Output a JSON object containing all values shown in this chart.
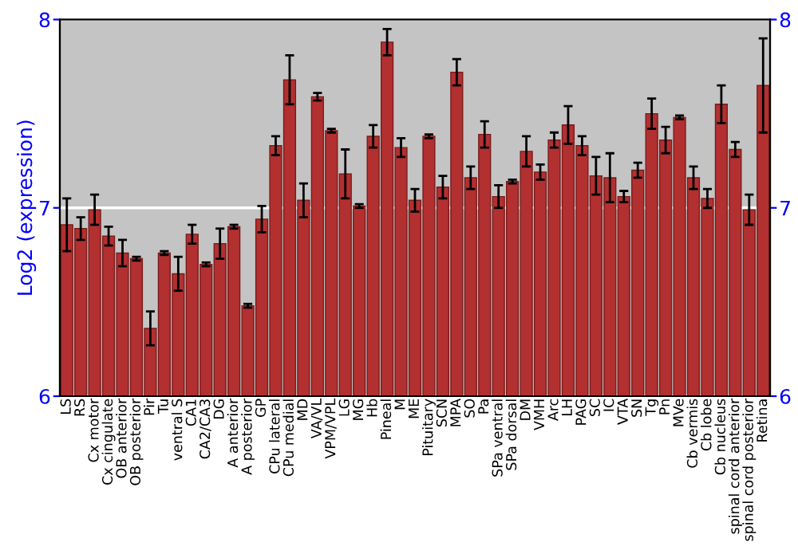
{
  "chart_data": {
    "type": "bar",
    "ylabel": "Log2 (expression)",
    "categories": [
      "LS",
      "RS",
      "Cx motor",
      "Cx cingulate",
      "OB anterior",
      "OB posterior",
      "Pir",
      "Tu",
      "ventral S",
      "CA1",
      "CA2/CA3",
      "DG",
      "A anterior",
      "A posterior",
      "GP",
      "CPu lateral",
      "CPu medial",
      "MD",
      "VA/VL",
      "VPM/VPL",
      "LG",
      "MG",
      "Hb",
      "Pineal",
      "M",
      "ME",
      "Pituitary",
      "SCN",
      "MPA",
      "SO",
      "Pa",
      "SPa ventral",
      "SPa dorsal",
      "DM",
      "VMH",
      "Arc",
      "LH",
      "PAG",
      "SC",
      "IC",
      "VTA",
      "SN",
      "Tg",
      "Pn",
      "MVe",
      "Cb vermis",
      "Cb lobe",
      "Cb nucleus",
      "spinal cord anterior",
      "spinal cord posterior",
      "Retina"
    ],
    "values": [
      6.91,
      6.89,
      6.99,
      6.85,
      6.76,
      6.73,
      6.36,
      6.76,
      6.65,
      6.86,
      6.7,
      6.81,
      6.9,
      6.48,
      6.94,
      7.33,
      7.68,
      7.04,
      7.59,
      7.41,
      7.18,
      7.01,
      7.38,
      7.88,
      7.32,
      7.04,
      7.38,
      7.11,
      7.72,
      7.16,
      7.39,
      7.06,
      7.14,
      7.3,
      7.19,
      7.36,
      7.44,
      7.33,
      7.17,
      7.16,
      7.06,
      7.2,
      7.5,
      7.36,
      7.48,
      7.16,
      7.05,
      7.55,
      7.31,
      6.99,
      7.65
    ],
    "errors": [
      0.14,
      0.06,
      0.08,
      0.05,
      0.07,
      0.01,
      0.09,
      0.01,
      0.09,
      0.05,
      0.01,
      0.08,
      0.01,
      0.01,
      0.07,
      0.05,
      0.13,
      0.09,
      0.02,
      0.01,
      0.13,
      0.01,
      0.06,
      0.07,
      0.05,
      0.06,
      0.01,
      0.06,
      0.07,
      0.06,
      0.07,
      0.06,
      0.01,
      0.08,
      0.04,
      0.04,
      0.1,
      0.05,
      0.1,
      0.13,
      0.03,
      0.04,
      0.08,
      0.07,
      0.01,
      0.06,
      0.05,
      0.1,
      0.04,
      0.08,
      0.25
    ],
    "color": "#b33030",
    "ylim": [
      6,
      8
    ],
    "yticks": [
      6,
      7,
      8
    ],
    "y2lim": [
      6,
      8
    ],
    "y2ticks": [
      6,
      7,
      8
    ],
    "grid": "y",
    "legend": false
  }
}
